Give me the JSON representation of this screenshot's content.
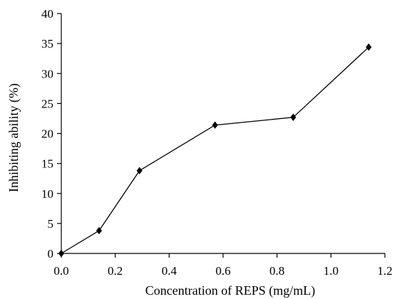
{
  "chart_data": {
    "type": "line",
    "title": "",
    "xlabel": "Concentration of REPS (mg/mL)",
    "ylabel": "Inhibiting ability (%)",
    "xlim": [
      0.0,
      1.2
    ],
    "ylim": [
      0,
      40
    ],
    "xticks": [
      "0.0",
      "0.2",
      "0.4",
      "0.6",
      "0.8",
      "1.0",
      "1.2"
    ],
    "yticks": [
      "0",
      "5",
      "10",
      "15",
      "20",
      "25",
      "30",
      "35",
      "40"
    ],
    "grid": false,
    "legend": "none",
    "marker": "diamond",
    "color": "#000000",
    "series": [
      {
        "x": [
          0.0,
          0.14,
          0.29,
          0.57,
          0.86,
          1.14
        ],
        "values": [
          0.0,
          3.8,
          13.8,
          21.4,
          22.7,
          34.4
        ]
      }
    ]
  }
}
